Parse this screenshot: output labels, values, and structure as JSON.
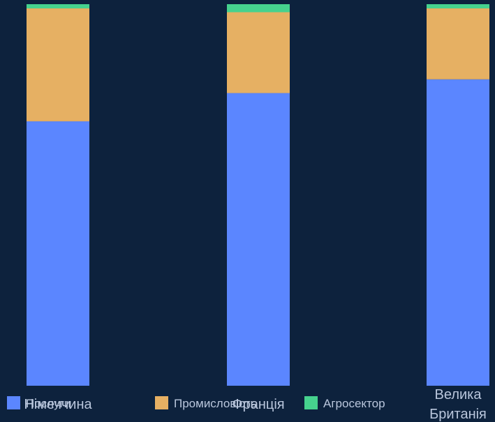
{
  "chart_data": {
    "type": "bar",
    "stacked": true,
    "categories": [
      "Німеччина",
      "Франція",
      "Велика Британія"
    ],
    "series": [
      {
        "name": "Послуги",
        "values": [
          69.3,
          76.7,
          80.3
        ],
        "color": "#5b86ff"
      },
      {
        "name": "Промисловість",
        "values": [
          29.6,
          21.2,
          18.6
        ],
        "color": "#e6b063"
      },
      {
        "name": "Агросектор",
        "values": [
          1.1,
          2.1,
          1.1
        ],
        "color": "#46d28e"
      }
    ],
    "ylim": [
      0,
      100
    ],
    "grid": false,
    "legend_position": "bottom-left",
    "title": "",
    "xlabel": "",
    "ylabel": ""
  }
}
